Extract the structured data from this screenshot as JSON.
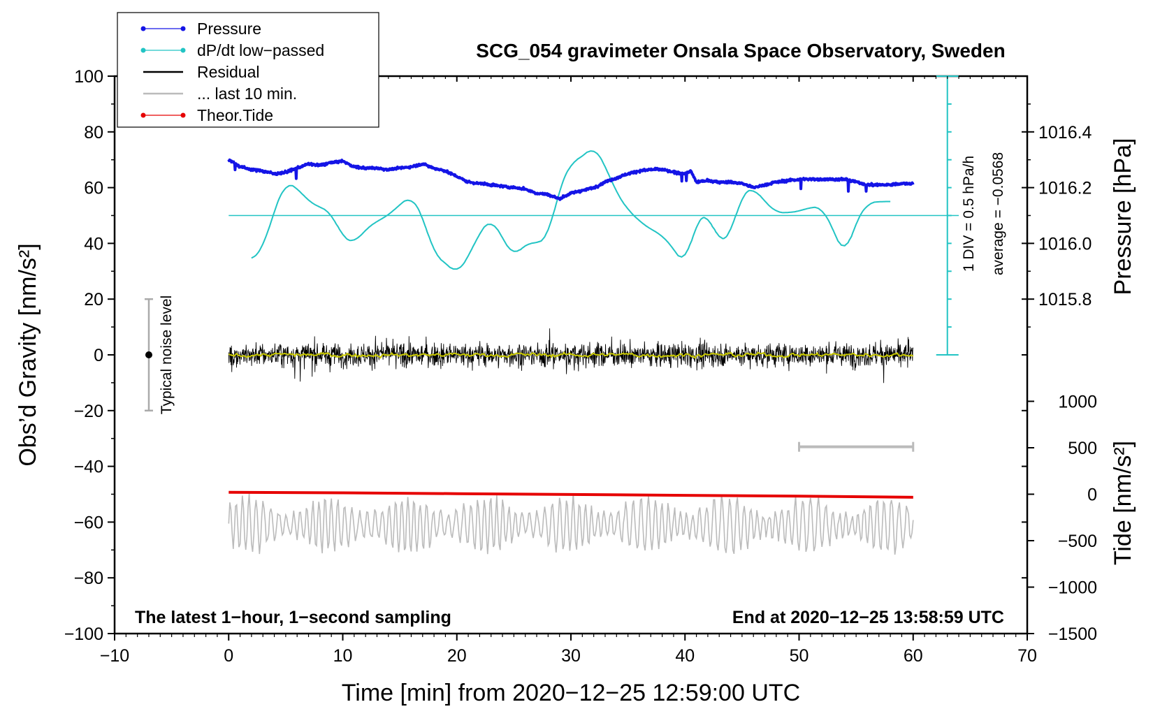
{
  "chart_data": {
    "type": "line",
    "title": "SCG_054 gravimeter Onsala Space Observatory, Sweden",
    "xlabel": "Time [min] from 2020−12−25 12:59:00 UTC",
    "ylabel_left": "Obs’d Gravity [nm/s²]",
    "ylabel_right_pressure": "Pressure [hPa]",
    "ylabel_right_tide": "Tide [nm/s²]",
    "xlim": [
      -10,
      70
    ],
    "ylim": [
      -100,
      100
    ],
    "x_ticks": [
      -10,
      0,
      10,
      20,
      30,
      40,
      50,
      60,
      70
    ],
    "x_tick_labels": [
      "−10",
      "0",
      "10",
      "20",
      "30",
      "40",
      "50",
      "60",
      "70"
    ],
    "y_ticks": [
      100,
      80,
      60,
      40,
      20,
      0,
      -20,
      -40,
      -60,
      -80,
      -100
    ],
    "y_tick_labels": [
      "100",
      "80",
      "60",
      "40",
      "20",
      "0",
      "−20",
      "−40",
      "−60",
      "−80",
      "−100"
    ],
    "pressure_axis": {
      "ticks": [
        1016.4,
        1016.2,
        1016.0,
        1015.8
      ],
      "tick_labels": [
        "1016.4",
        "1016.2",
        "1016.0",
        "1015.8"
      ],
      "gravity_equiv": [
        80,
        60,
        40,
        20
      ]
    },
    "tide_axis": {
      "ticks": [
        1000,
        500,
        0,
        -500,
        -1000,
        -1500
      ],
      "tick_labels": [
        "1000",
        "500",
        "0",
        "−500",
        "−1000",
        "−1500"
      ],
      "gravity_equiv": [
        -16.67,
        -33.33,
        -50,
        -66.67,
        -83.33,
        -100
      ]
    },
    "legend": {
      "position": "top-left",
      "entries": [
        {
          "label": "Pressure",
          "color": "#1414e6",
          "marker": true
        },
        {
          "label": "dP/dt low−passed",
          "color": "#22c4c4",
          "marker": true
        },
        {
          "label": "Residual",
          "color": "#000000",
          "marker": false
        },
        {
          "label": "... last 10 min.",
          "color": "#bbbbbb",
          "marker": false
        },
        {
          "label": "Theor.Tide",
          "color": "#e60000",
          "marker": true
        }
      ]
    },
    "notes": {
      "bottom_left": "The latest 1−hour, 1−second sampling",
      "bottom_right": "End at 2020−12−25 13:58:59 UTC",
      "noise_label": "Typical noise level",
      "dpdt_scale": "1 DIV = 0.5 hPa/h",
      "dpdt_average": "average = −0.0568"
    },
    "noise_bar": {
      "x": -7,
      "center": 0,
      "low": -20,
      "high": 20
    },
    "dpdt_scale_bar": {
      "x": 63,
      "low": 0,
      "high": 100,
      "div": 10
    },
    "time_bar": {
      "x_start": 50,
      "x_end": 60,
      "y": -33
    },
    "series": [
      {
        "name": "Pressure",
        "color": "#1414e6",
        "x": [
          0,
          1,
          2,
          3,
          4,
          5,
          6,
          7,
          8,
          9,
          10,
          11,
          12,
          13,
          14,
          15,
          16,
          17,
          18,
          19,
          20,
          21,
          22,
          23,
          24,
          25,
          26,
          27,
          28,
          29,
          30,
          31,
          32,
          33,
          34,
          35,
          36,
          37,
          38,
          39,
          40,
          40.5,
          41,
          42,
          43,
          44,
          45,
          46,
          47,
          48,
          49,
          50,
          51,
          52,
          53,
          54,
          55,
          56,
          57,
          58,
          59,
          60
        ],
        "y": [
          70,
          67.5,
          66.5,
          66,
          65,
          65.5,
          67,
          68.5,
          68,
          69,
          69.5,
          67.5,
          67,
          67,
          66.5,
          67,
          67.5,
          68.5,
          67,
          66,
          64,
          62,
          61.5,
          61,
          60.5,
          60,
          59.5,
          58,
          57.5,
          56,
          58,
          59,
          60,
          62,
          63.5,
          65,
          66,
          66.5,
          66.5,
          65.5,
          65,
          66,
          62,
          62.5,
          62,
          62,
          61.5,
          60,
          61,
          62,
          62.5,
          63,
          63,
          63,
          63,
          63,
          62,
          61,
          61,
          61,
          61.5,
          61.5
        ]
      },
      {
        "name": "dP/dt low-passed",
        "color": "#22c4c4",
        "baseline": 50,
        "x": [
          2,
          3,
          4,
          5,
          6,
          7,
          8,
          9,
          10,
          11,
          12,
          13,
          14,
          15,
          16,
          17,
          18,
          19,
          20,
          21,
          22,
          23,
          24,
          25,
          26,
          27,
          28,
          29,
          30,
          31,
          32,
          33,
          34,
          35,
          36,
          37,
          38,
          39,
          40,
          41,
          42,
          43,
          44,
          45,
          46,
          47,
          48,
          49,
          50,
          51,
          52,
          53,
          54,
          55,
          56,
          57,
          58
        ],
        "y": [
          34,
          38,
          52,
          62,
          60,
          55,
          53,
          51,
          42,
          40,
          45,
          48,
          50,
          54,
          57,
          50,
          36,
          33,
          29,
          35,
          44,
          49,
          42,
          35,
          40,
          40,
          42,
          60,
          69,
          71,
          75,
          68,
          58,
          52,
          48,
          45,
          43,
          38,
          32,
          48,
          51,
          40,
          43,
          58,
          60,
          55,
          51,
          51,
          51.5,
          53,
          53,
          45,
          35,
          48,
          54.5,
          55,
          55
        ]
      },
      {
        "name": "Residual",
        "color": "#000000",
        "x_range": [
          0,
          60
        ],
        "envelope": [
          -16,
          20
        ],
        "typical_amplitude": 8
      },
      {
        "name": "Residual smoothed",
        "color": "#c8c800",
        "x_range": [
          0,
          60
        ],
        "center": 0
      },
      {
        "name": "... last 10 min.",
        "color": "#bbbbbb",
        "x_range": [
          0,
          60
        ],
        "center": -61,
        "envelope": [
          -73,
          -49
        ]
      },
      {
        "name": "Theor.Tide",
        "color": "#e60000",
        "x": [
          0,
          10,
          20,
          30,
          40,
          50,
          60
        ],
        "y": [
          -49.3,
          -49.5,
          -49.8,
          -50.1,
          -50.4,
          -50.7,
          -51.1
        ]
      }
    ]
  }
}
